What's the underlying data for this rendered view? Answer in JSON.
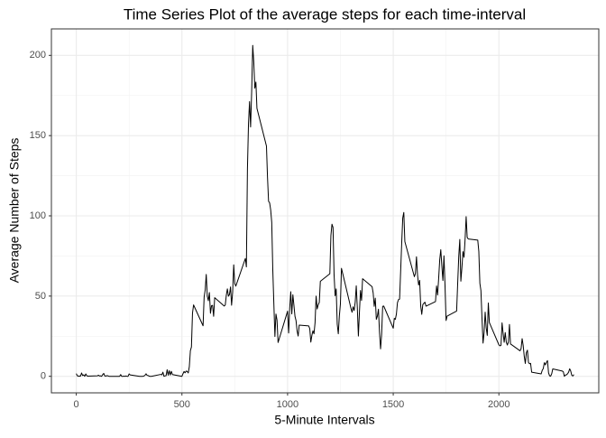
{
  "chart_data": {
    "type": "line",
    "title": "Time Series Plot of the average steps for each time-interval",
    "x_label": "5-Minute Intervals",
    "y_label": "Average Number of Steps",
    "color": "#000000",
    "grid": true,
    "xlim": [
      -117.75,
      2472.75
    ],
    "ylim": [
      -10.3,
      216.5
    ],
    "xticks": [
      0,
      500,
      1000,
      1500,
      2000
    ],
    "yticks": [
      0,
      50,
      100,
      150,
      200
    ],
    "x": [
      0,
      5,
      10,
      15,
      20,
      25,
      30,
      35,
      40,
      45,
      50,
      55,
      100,
      105,
      110,
      115,
      120,
      125,
      130,
      135,
      140,
      145,
      150,
      155,
      200,
      205,
      210,
      215,
      220,
      225,
      230,
      235,
      240,
      245,
      250,
      255,
      300,
      305,
      310,
      315,
      320,
      325,
      330,
      335,
      340,
      345,
      350,
      355,
      400,
      405,
      410,
      415,
      420,
      425,
      430,
      435,
      440,
      445,
      450,
      455,
      500,
      505,
      510,
      515,
      520,
      525,
      530,
      535,
      540,
      545,
      550,
      555,
      600,
      605,
      610,
      615,
      620,
      625,
      630,
      635,
      640,
      645,
      650,
      655,
      700,
      705,
      710,
      715,
      720,
      725,
      730,
      735,
      740,
      745,
      750,
      755,
      800,
      805,
      810,
      815,
      820,
      825,
      830,
      835,
      840,
      845,
      850,
      855,
      900,
      905,
      910,
      915,
      920,
      925,
      930,
      935,
      940,
      945,
      950,
      955,
      1000,
      1005,
      1010,
      1015,
      1020,
      1025,
      1030,
      1035,
      1040,
      1045,
      1050,
      1055,
      1100,
      1105,
      1110,
      1115,
      1120,
      1125,
      1130,
      1135,
      1140,
      1145,
      1150,
      1155,
      1200,
      1205,
      1210,
      1215,
      1220,
      1225,
      1230,
      1235,
      1240,
      1245,
      1250,
      1255,
      1300,
      1305,
      1310,
      1315,
      1320,
      1325,
      1330,
      1335,
      1340,
      1345,
      1350,
      1355,
      1400,
      1405,
      1410,
      1415,
      1420,
      1425,
      1430,
      1435,
      1440,
      1445,
      1450,
      1455,
      1500,
      1505,
      1510,
      1515,
      1520,
      1525,
      1530,
      1535,
      1540,
      1545,
      1550,
      1555,
      1600,
      1605,
      1610,
      1615,
      1620,
      1625,
      1630,
      1635,
      1640,
      1645,
      1650,
      1655,
      1700,
      1705,
      1710,
      1715,
      1720,
      1725,
      1730,
      1735,
      1740,
      1745,
      1750,
      1755,
      1800,
      1805,
      1810,
      1815,
      1820,
      1825,
      1830,
      1835,
      1840,
      1845,
      1850,
      1855,
      1900,
      1905,
      1910,
      1915,
      1920,
      1925,
      1930,
      1935,
      1940,
      1945,
      1950,
      1955,
      2000,
      2005,
      2010,
      2015,
      2020,
      2025,
      2030,
      2035,
      2040,
      2045,
      2050,
      2055,
      2100,
      2105,
      2110,
      2115,
      2120,
      2125,
      2130,
      2135,
      2140,
      2145,
      2150,
      2155,
      2200,
      2205,
      2210,
      2215,
      2220,
      2225,
      2230,
      2235,
      2240,
      2245,
      2250,
      2255,
      2300,
      2305,
      2310,
      2315,
      2320,
      2325,
      2330,
      2335,
      2340,
      2345,
      2350,
      2355
    ],
    "values": [
      1.7,
      0.3,
      0.1,
      0.2,
      0.1,
      2.1,
      0.5,
      0.9,
      0,
      1.5,
      0.3,
      0.1,
      0.3,
      0.7,
      0.2,
      0.3,
      0,
      1.1,
      1.8,
      0.2,
      0.2,
      0.4,
      0.3,
      0,
      0,
      0,
      1.1,
      0,
      0,
      0.1,
      0,
      0.2,
      0,
      0,
      1.5,
      0.9,
      0,
      0,
      0,
      0,
      0.2,
      0.6,
      1.6,
      0.6,
      0.5,
      0.1,
      0,
      0,
      1.2,
      0.9,
      2.6,
      0,
      0.3,
      0.4,
      4.1,
      0.7,
      3.5,
      0.8,
      3.1,
      1.1,
      0,
      1.6,
      3,
      2.2,
      3.3,
      3,
      2.1,
      6.1,
      16,
      18.3,
      39.5,
      44.5,
      31.5,
      49.3,
      53.8,
      63.5,
      50,
      47.1,
      52.2,
      39.3,
      44,
      44.2,
      37.4,
      49,
      43.8,
      44.4,
      50.5,
      54.5,
      49.9,
      51,
      55.7,
      44.3,
      52.3,
      69.5,
      57.8,
      56.2,
      73.4,
      68.2,
      129.4,
      157.5,
      171.2,
      155.4,
      177.3,
      206.2,
      195.9,
      179.6,
      183.4,
      167,
      143.5,
      124,
      109.1,
      108.1,
      103.7,
      95.97,
      66.2,
      45.2,
      24.8,
      38.8,
      34.98,
      21.1,
      40.6,
      26.98,
      42.4,
      52.7,
      38.9,
      50.8,
      44.3,
      37.4,
      34.7,
      28.3,
      25.1,
      31.9,
      31.4,
      29.7,
      21.3,
      25.5,
      28.4,
      26.5,
      33.4,
      49.98,
      42,
      44.6,
      46,
      59.2,
      63.9,
      87.7,
      94.8,
      92.8,
      63.4,
      50.2,
      54.5,
      32.4,
      26.5,
      37.7,
      45.1,
      67.3,
      42.3,
      39.9,
      43.3,
      40.98,
      46.2,
      56.4,
      42.8,
      25.1,
      39.97,
      53.5,
      47.3,
      60.8,
      55.8,
      51.96,
      43.6,
      48.7,
      35.5,
      37.5,
      41.8,
      27.5,
      17.1,
      26.1,
      43.6,
      43.8,
      30,
      36.1,
      35.5,
      38.8,
      45.96,
      47.8,
      48.1,
      65.3,
      82.9,
      98.7,
      102.1,
      83.96,
      62.1,
      64.1,
      74.5,
      63.2,
      56.9,
      59.8,
      43.9,
      38.6,
      44.7,
      45.5,
      46.2,
      43.7,
      46.6,
      56.3,
      50.7,
      61.2,
      72.7,
      78.9,
      68.9,
      59.7,
      75.1,
      56.5,
      34.8,
      37.5,
      40.7,
      58,
      74.7,
      85.3,
      59.3,
      67.8,
      77.7,
      74.2,
      85.3,
      99.5,
      86.6,
      85.6,
      84.9,
      77.8,
      58,
      53.4,
      36.3,
      20.7,
      27.4,
      40,
      30.2,
      25.5,
      45.7,
      33.5,
      19.6,
      19,
      19.3,
      33.3,
      26.8,
      21.2,
      27.3,
      21.3,
      19.5,
      21.3,
      32.3,
      20.2,
      15.9,
      17.2,
      23.5,
      19.2,
      12.5,
      8,
      14.7,
      16.3,
      8.7,
      7.8,
      8.1,
      2.6,
      1.5,
      3.7,
      4.8,
      8.5,
      7.1,
      8.7,
      9.8,
      2.2,
      0.3,
      0.1,
      1.6,
      4.6,
      3.3,
      2.8,
      0,
      0.8,
      0.96,
      1.6,
      2.6,
      4.7,
      3.3,
      0.6,
      0.2,
      1.1
    ]
  }
}
